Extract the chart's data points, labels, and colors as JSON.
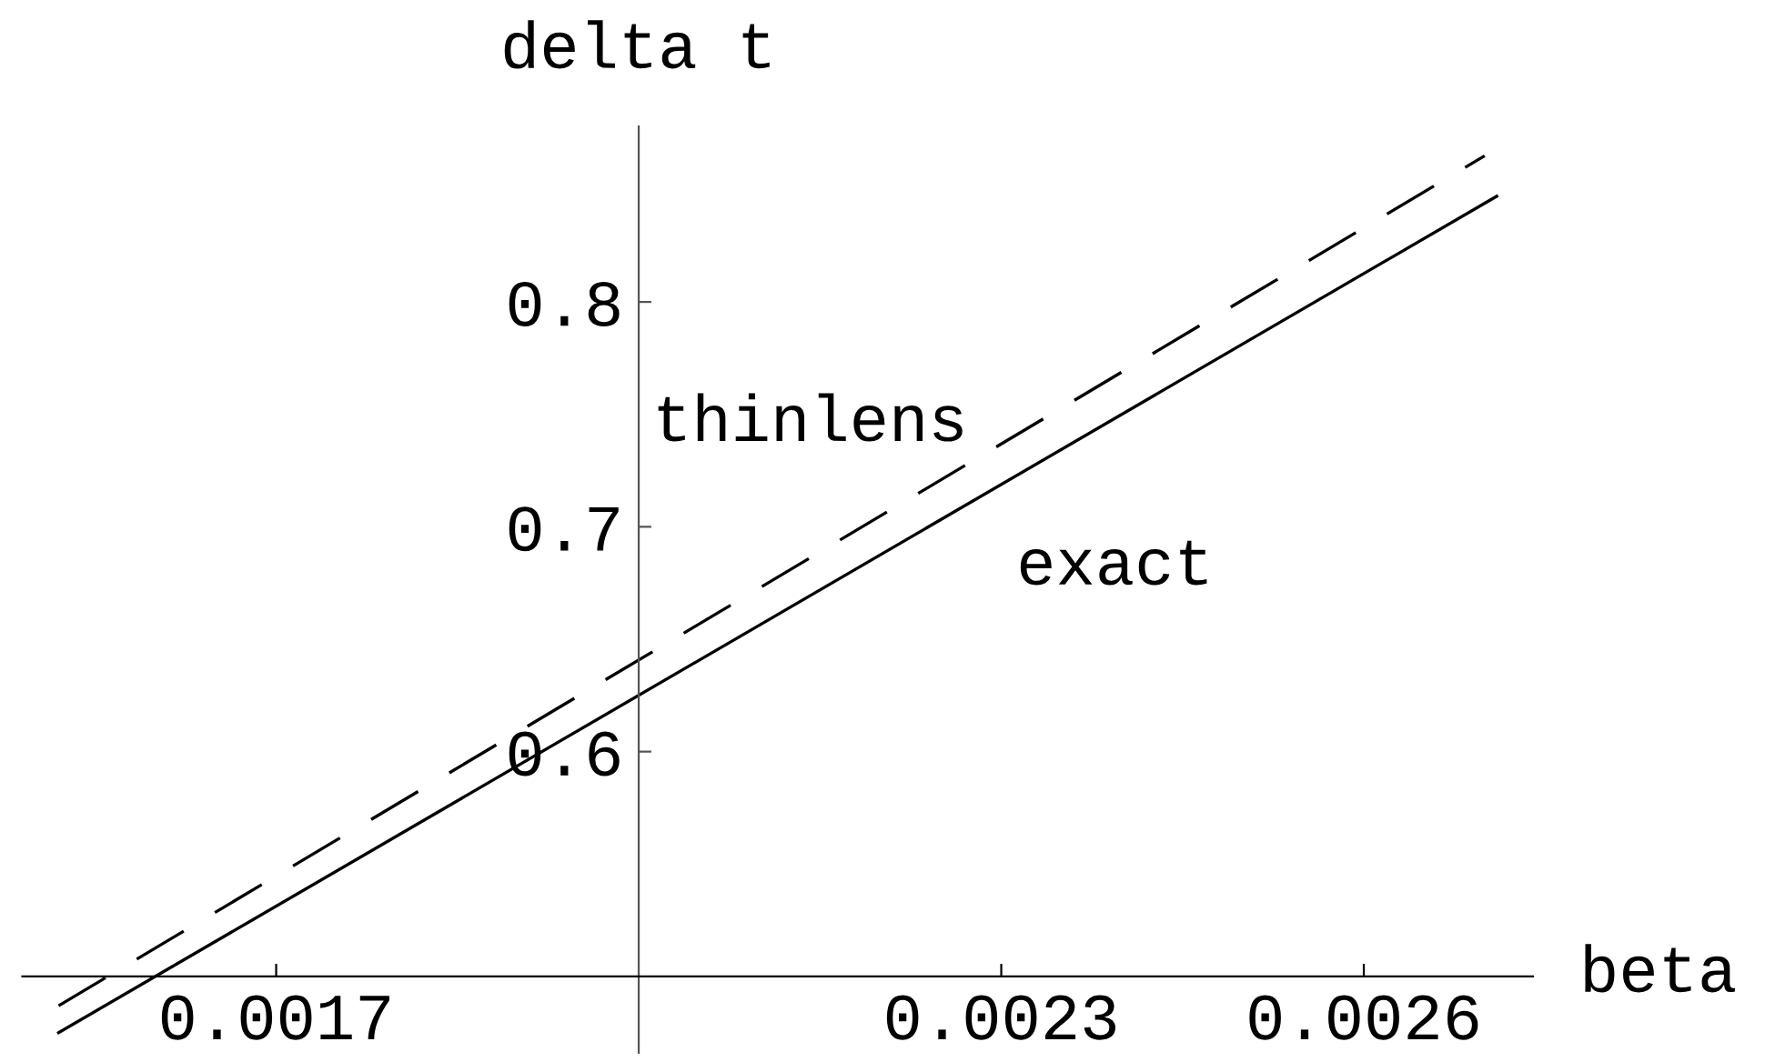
{
  "chart_data": {
    "type": "line",
    "xlabel": "beta",
    "ylabel": "delta t",
    "xlim": [
      0.00149,
      0.00274
    ],
    "ylim": [
      0.466,
      0.878
    ],
    "xticks": [
      0.0017,
      0.0023,
      0.0026
    ],
    "yticks": [
      0.6,
      0.7,
      0.8
    ],
    "grid": false,
    "legend": false,
    "marker": "none",
    "series": [
      {
        "name": "thinlens",
        "color": "#000000",
        "line_style": "dashed",
        "x": [
          0.00152,
          0.0027
        ],
        "values": [
          0.487,
          0.865
        ]
      },
      {
        "name": "exact",
        "color": "#000000",
        "line_style": "solid",
        "x": [
          0.00152,
          0.00271
        ],
        "values": [
          0.475,
          0.847
        ]
      }
    ]
  }
}
